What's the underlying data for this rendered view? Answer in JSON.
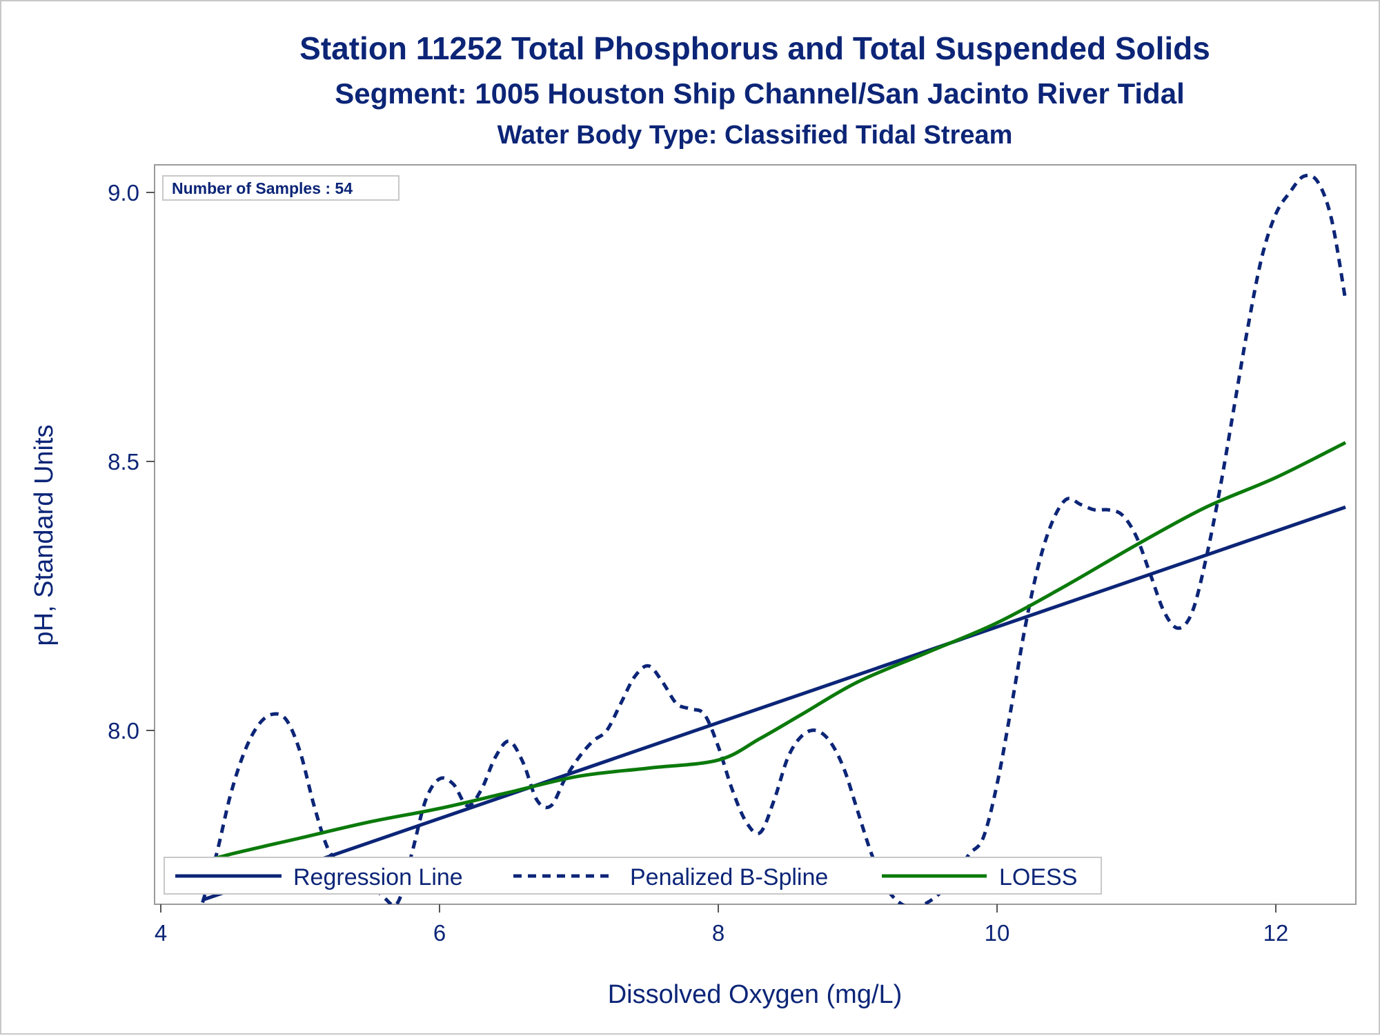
{
  "titles": {
    "line1": "Station 11252  Total Phosphorus and Total Suspended Solids",
    "line2": "Segment: 1005  Houston Ship Channel/San Jacinto River Tidal",
    "line3": "Water Body Type: Classified Tidal Stream"
  },
  "inset": {
    "samples_label": "Number of Samples : 54"
  },
  "colors": {
    "regression": "#0c2577",
    "spline": "#0c2577",
    "loess": "#0b7a0b",
    "text": "#0c2577",
    "frame": "#9a9a9a"
  },
  "chart_data": {
    "type": "line",
    "xlabel": "Dissolved Oxygen (mg/L)",
    "ylabel": "pH, Standard Units",
    "xlim": [
      4,
      12.55
    ],
    "ylim": [
      7.675,
      9.055
    ],
    "xticks": [
      4,
      6,
      8,
      10,
      12
    ],
    "yticks": [
      8.0,
      8.5,
      9.0
    ],
    "xtick_labels": [
      "4",
      "6",
      "8",
      "10",
      "12"
    ],
    "ytick_labels": [
      "8.0",
      "8.5",
      "9.0"
    ],
    "grid": false,
    "legend_placement": "bottom-inside",
    "series": [
      {
        "name": "Regression Line",
        "style": "solid",
        "x": [
          4.3,
          12.5
        ],
        "y": [
          7.685,
          8.415
        ]
      },
      {
        "name": "Penalized B-Spline",
        "style": "dashed",
        "x": [
          4.3,
          4.4,
          4.5,
          4.6,
          4.7,
          4.8,
          4.9,
          5.0,
          5.1,
          5.2,
          5.3,
          5.4,
          5.5,
          5.6,
          5.7,
          5.8,
          5.9,
          6.0,
          6.1,
          6.2,
          6.3,
          6.4,
          6.5,
          6.6,
          6.7,
          6.8,
          6.9,
          7.0,
          7.1,
          7.2,
          7.3,
          7.4,
          7.5,
          7.6,
          7.7,
          7.8,
          7.9,
          8.0,
          8.1,
          8.2,
          8.3,
          8.4,
          8.5,
          8.6,
          8.7,
          8.8,
          8.9,
          9.0,
          9.1,
          9.2,
          9.3,
          9.4,
          9.5,
          9.6,
          9.7,
          9.8,
          9.9,
          10.0,
          10.1,
          10.2,
          10.3,
          10.4,
          10.5,
          10.6,
          10.7,
          10.8,
          10.9,
          11.0,
          11.1,
          11.2,
          11.3,
          11.4,
          11.5,
          11.6,
          11.7,
          11.8,
          11.9,
          12.0,
          12.1,
          12.2,
          12.3,
          12.4,
          12.5
        ],
        "y": [
          7.68,
          7.77,
          7.88,
          7.96,
          8.01,
          8.03,
          8.02,
          7.96,
          7.86,
          7.78,
          7.75,
          7.74,
          7.72,
          7.69,
          7.68,
          7.77,
          7.87,
          7.91,
          7.9,
          7.86,
          7.89,
          7.95,
          7.98,
          7.94,
          7.87,
          7.86,
          7.91,
          7.95,
          7.98,
          8.0,
          8.05,
          8.1,
          8.12,
          8.09,
          8.05,
          8.04,
          8.03,
          7.97,
          7.89,
          7.83,
          7.81,
          7.87,
          7.95,
          7.99,
          8.0,
          7.98,
          7.93,
          7.85,
          7.77,
          7.71,
          7.68,
          7.67,
          7.68,
          7.7,
          7.73,
          7.77,
          7.8,
          7.9,
          8.04,
          8.19,
          8.31,
          8.39,
          8.43,
          8.42,
          8.41,
          8.41,
          8.4,
          8.36,
          8.29,
          8.22,
          8.19,
          8.22,
          8.32,
          8.45,
          8.6,
          8.75,
          8.88,
          8.96,
          9.0,
          9.03,
          9.02,
          8.95,
          8.8
        ]
      },
      {
        "name": "LOESS",
        "style": "solid",
        "x": [
          4.3,
          4.5,
          5.0,
          5.5,
          6.0,
          6.5,
          7.0,
          7.5,
          8.0,
          8.3,
          8.6,
          9.0,
          9.5,
          10.0,
          10.5,
          11.0,
          11.5,
          12.0,
          12.5
        ],
        "y": [
          7.755,
          7.77,
          7.8,
          7.83,
          7.855,
          7.885,
          7.915,
          7.93,
          7.945,
          7.985,
          8.03,
          8.09,
          8.145,
          8.2,
          8.27,
          8.345,
          8.415,
          8.47,
          8.535
        ]
      }
    ]
  }
}
